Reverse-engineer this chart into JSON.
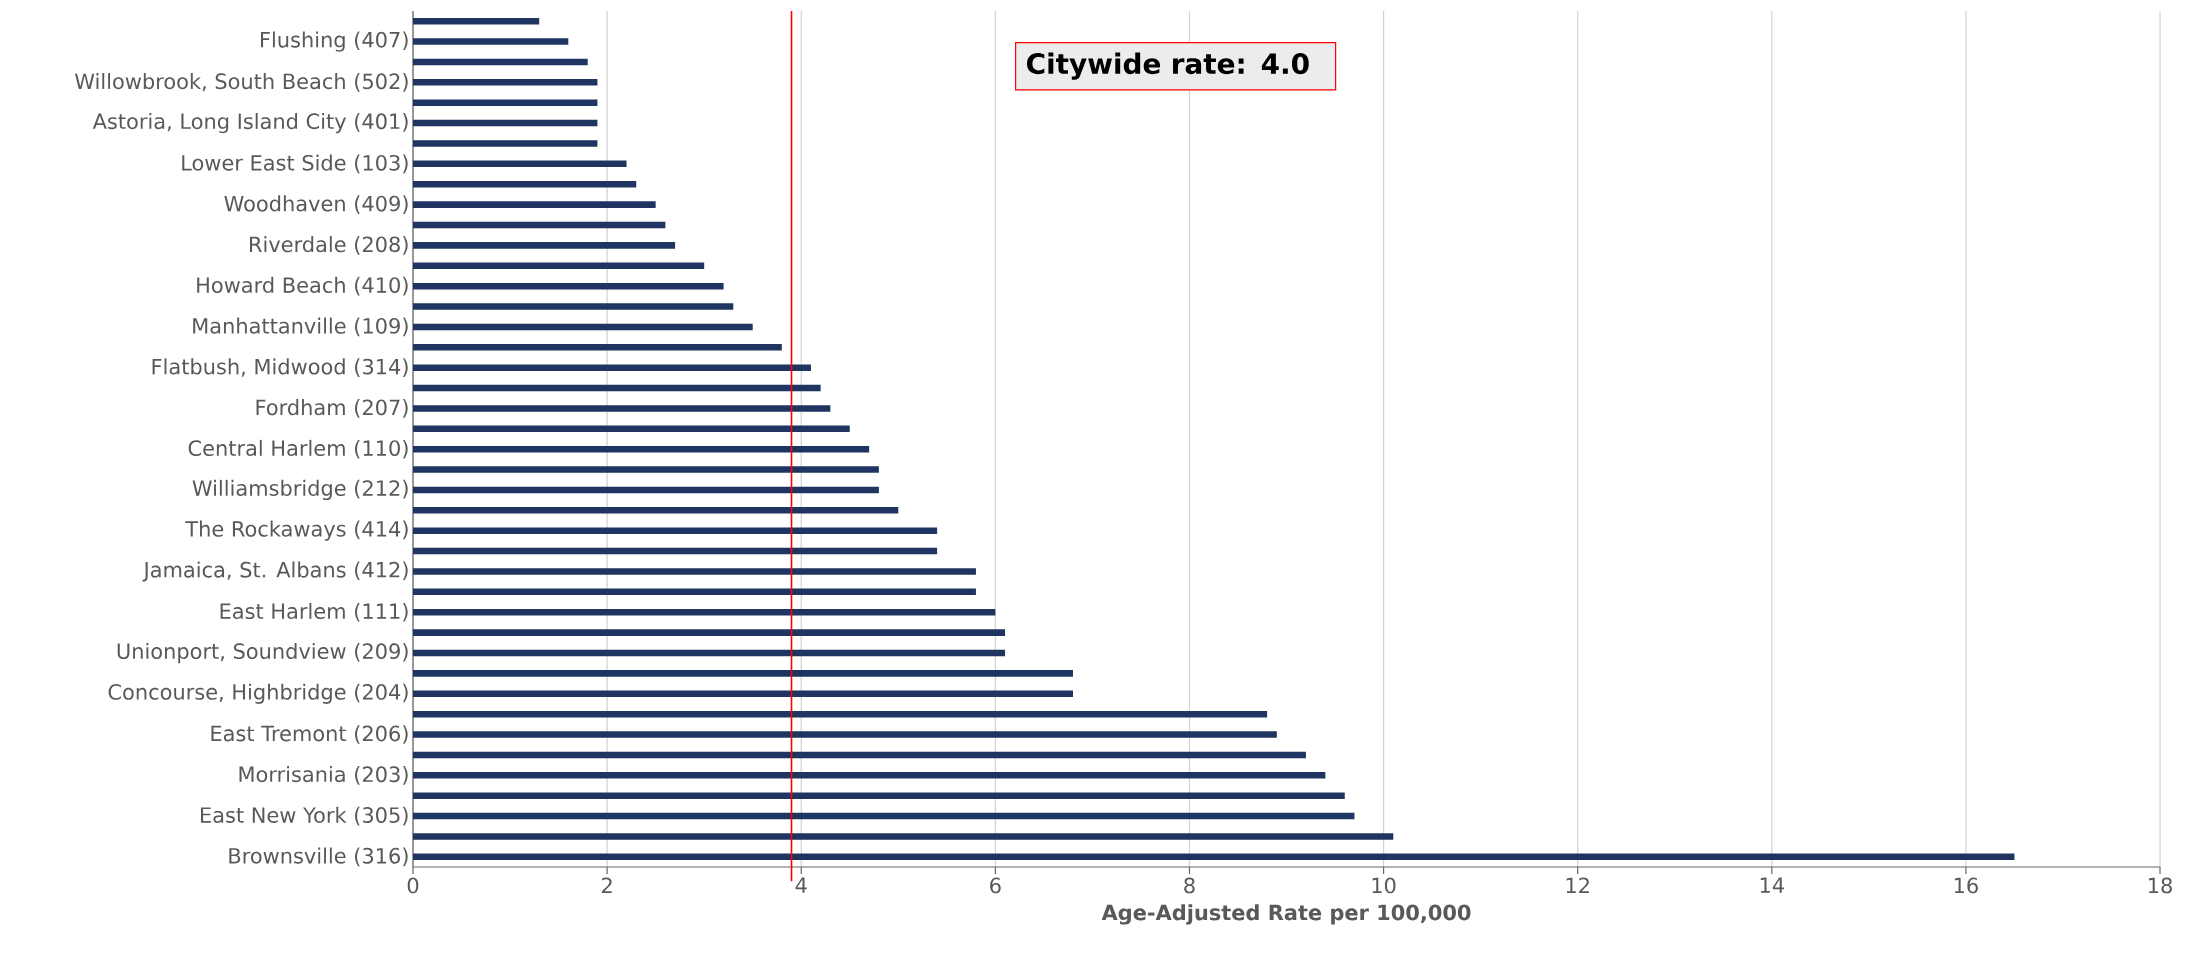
{
  "chart_data": {
    "type": "bar",
    "orientation": "horizontal",
    "xlabel": "Age-Adjusted Rate per 100,000",
    "categories": [
      null,
      "Flushing (407)",
      null,
      "Willowbrook, South Beach (502)",
      null,
      "Astoria, Long Island City (401)",
      null,
      "Lower East Side (103)",
      null,
      "Woodhaven (409)",
      null,
      "Riverdale (208)",
      null,
      "Howard Beach (410)",
      null,
      "Manhattanville (109)",
      null,
      "Flatbush, Midwood (314)",
      null,
      "Fordham (207)",
      null,
      "Central Harlem (110)",
      null,
      "Williamsbridge (212)",
      null,
      "The Rockaways (414)",
      null,
      "Jamaica, St. Albans (412)",
      null,
      "East Harlem (111)",
      null,
      "Unionport, Soundview (209)",
      null,
      "Concourse, Highbridge (204)",
      null,
      "East Tremont (206)",
      null,
      "Morrisania (203)",
      null,
      "East New York (305)",
      null,
      "Brownsville (316)"
    ],
    "values": [
      1.3,
      1.6,
      1.8,
      1.9,
      1.9,
      1.9,
      1.9,
      2.2,
      2.3,
      2.5,
      2.6,
      2.7,
      3.0,
      3.2,
      3.3,
      3.5,
      3.8,
      4.1,
      4.2,
      4.3,
      4.5,
      4.7,
      4.8,
      4.8,
      5.0,
      5.4,
      5.4,
      5.8,
      5.8,
      6.0,
      6.1,
      6.1,
      6.8,
      6.8,
      8.8,
      8.9,
      9.2,
      9.4,
      9.6,
      9.7,
      10.1,
      16.5
    ],
    "color": "#1f3461",
    "xlim": [
      0,
      18
    ],
    "xticks": [
      0,
      2,
      4,
      6,
      8,
      10,
      12,
      14,
      16,
      18
    ],
    "grid": "x",
    "ref_lines": [
      {
        "axis": "x",
        "value": 3.9,
        "color": "#ff0000"
      }
    ],
    "annotations": [
      "Citywide rate: 4.0"
    ]
  }
}
